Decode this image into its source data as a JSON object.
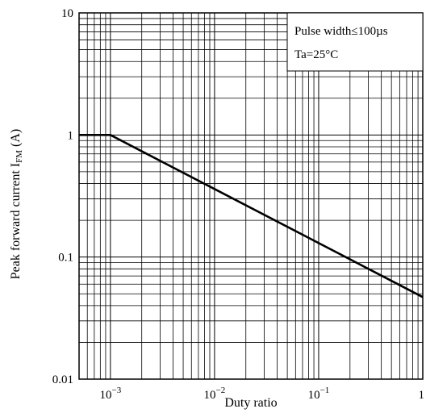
{
  "chart_data": {
    "type": "line",
    "xlabel": "Duty ratio",
    "ylabel": "Peak forward current I",
    "ylabel_sub": "FM",
    "ylabel_unit": " (A)",
    "x_scale": "log",
    "y_scale": "log",
    "xlim": [
      0.0005,
      1
    ],
    "ylim": [
      0.01,
      10
    ],
    "x_ticks": [
      {
        "value": 0.001,
        "base": "10",
        "exp": "−3"
      },
      {
        "value": 0.01,
        "base": "10",
        "exp": "−2"
      },
      {
        "value": 0.1,
        "base": "10",
        "exp": "−1"
      },
      {
        "value": 1,
        "base": "1",
        "exp": ""
      }
    ],
    "y_ticks": [
      {
        "value": 0.01,
        "label": "0.01"
      },
      {
        "value": 0.1,
        "label": "0.1"
      },
      {
        "value": 1,
        "label": "1"
      },
      {
        "value": 10,
        "label": "10"
      }
    ],
    "grid": true,
    "legend": "none",
    "annotation": {
      "position": "top-right",
      "lines": [
        "Pulse width≤100µs",
        "Ta=25°C"
      ]
    },
    "series": [
      {
        "x": [
          0.0005,
          0.001,
          1
        ],
        "y": [
          1,
          1,
          0.047
        ]
      }
    ],
    "line_color": "#000000"
  }
}
